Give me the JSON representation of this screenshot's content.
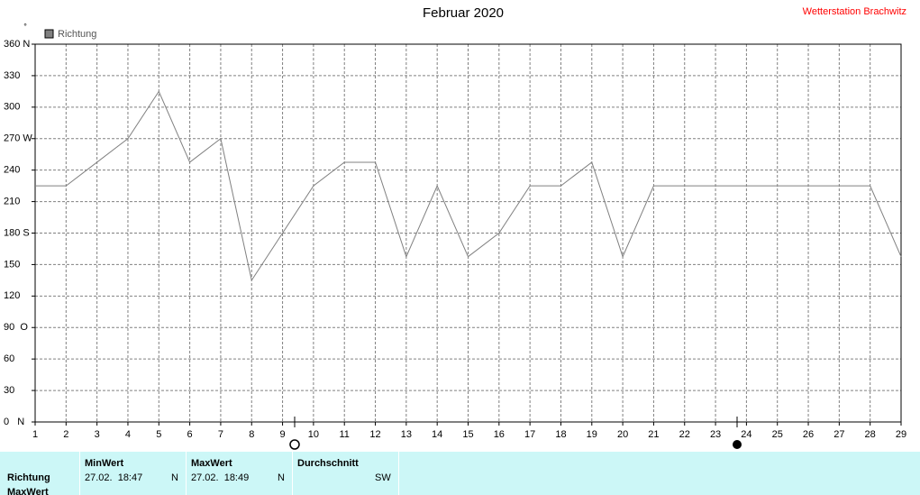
{
  "chart_data": {
    "type": "line",
    "title": "Februar 2020",
    "station": "Wetterstation Brachwitz",
    "y_unit": "°",
    "x": [
      1,
      2,
      3,
      4,
      5,
      6,
      7,
      8,
      9,
      10,
      11,
      12,
      13,
      14,
      15,
      16,
      17,
      18,
      19,
      20,
      21,
      22,
      23,
      24,
      25,
      26,
      27,
      28,
      29
    ],
    "xlim": [
      1,
      29
    ],
    "xticks": [
      1,
      2,
      3,
      4,
      5,
      6,
      7,
      8,
      9,
      10,
      11,
      12,
      13,
      14,
      15,
      16,
      17,
      18,
      19,
      20,
      21,
      22,
      23,
      24,
      25,
      26,
      27,
      28,
      29
    ],
    "ylim": [
      0,
      360
    ],
    "yticks": [
      {
        "value": 0,
        "label": "0   N"
      },
      30,
      60,
      {
        "value": 90,
        "label": "90  O"
      },
      120,
      150,
      {
        "value": 180,
        "label": "180 S"
      },
      210,
      240,
      {
        "value": 270,
        "label": "270 W"
      },
      300,
      330,
      {
        "value": 360,
        "label": "360 N"
      }
    ],
    "grid": true,
    "legend": "top-left",
    "series": [
      {
        "name": "Richtung",
        "color": "#808080",
        "values": [
          225,
          225,
          247.5,
          270,
          315,
          247.5,
          270,
          135,
          180,
          225,
          247.5,
          247.5,
          157.5,
          225,
          157.5,
          180,
          225,
          225,
          247.5,
          157.5,
          225,
          225,
          225,
          225,
          225,
          225,
          225,
          225,
          157.5
        ]
      }
    ]
  },
  "table": {
    "header": [
      "MinWert",
      "MaxWert",
      "Durchschnitt"
    ],
    "rows": [
      [
        "Richtung",
        "27.02.  18:47",
        "N",
        "27.02.  18:49",
        "N",
        "SW"
      ],
      [
        "MaxWert"
      ]
    ]
  }
}
